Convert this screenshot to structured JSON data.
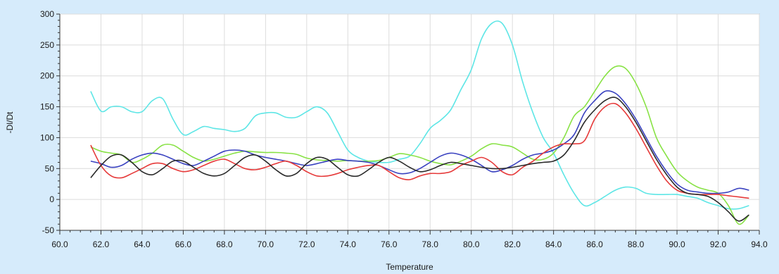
{
  "chart_data": {
    "type": "line",
    "title": "",
    "xlabel": "Temperature",
    "ylabel": "-Dl/Dt",
    "xlim": [
      60,
      94
    ],
    "ylim": [
      -50,
      300
    ],
    "x_ticks": [
      "60.0",
      "62.0",
      "64.0",
      "66.0",
      "68.0",
      "70.0",
      "72.0",
      "74.0",
      "76.0",
      "78.0",
      "80.0",
      "82.0",
      "84.0",
      "86.0",
      "88.0",
      "90.0",
      "92.0",
      "94.0"
    ],
    "y_ticks": [
      "300",
      "250",
      "200",
      "150",
      "100",
      "50",
      "0",
      "-50"
    ],
    "grid": true,
    "legend": "none",
    "series": [
      {
        "color": "#5ee6e6",
        "x": [
          61.5,
          62.0,
          62.5,
          63.0,
          63.5,
          64.0,
          64.5,
          65.0,
          65.5,
          66.0,
          66.5,
          67.0,
          67.5,
          68.0,
          68.5,
          69.0,
          69.5,
          70.0,
          70.5,
          71.0,
          71.5,
          72.0,
          72.5,
          73.0,
          73.5,
          74.0,
          74.5,
          75.0,
          75.5,
          76.0,
          76.5,
          77.0,
          77.5,
          78.0,
          78.5,
          79.0,
          79.5,
          80.0,
          80.5,
          81.0,
          81.5,
          82.0,
          82.5,
          83.0,
          83.5,
          84.0,
          84.5,
          85.0,
          85.5,
          86.0,
          86.5,
          87.0,
          87.5,
          88.0,
          88.5,
          89.0,
          89.5,
          90.0,
          90.5,
          91.0,
          91.5,
          92.0,
          92.5,
          93.0,
          93.5
        ],
        "y": [
          175,
          143,
          150,
          150,
          142,
          142,
          160,
          163,
          130,
          105,
          110,
          118,
          115,
          113,
          110,
          115,
          135,
          140,
          140,
          133,
          133,
          142,
          150,
          140,
          110,
          80,
          68,
          62,
          60,
          60,
          65,
          70,
          90,
          115,
          128,
          145,
          178,
          210,
          260,
          285,
          285,
          250,
          190,
          140,
          100,
          75,
          40,
          10,
          -10,
          -5,
          5,
          15,
          20,
          18,
          10,
          8,
          8,
          8,
          5,
          2,
          -5,
          -10,
          -15,
          -15,
          -10
        ]
      },
      {
        "color": "#88e245",
        "x": [
          61.5,
          62.0,
          62.5,
          63.0,
          63.5,
          64.0,
          64.5,
          65.0,
          65.5,
          66.0,
          66.5,
          67.0,
          67.5,
          68.0,
          68.5,
          69.0,
          69.5,
          70.0,
          70.5,
          71.0,
          71.5,
          72.0,
          72.5,
          73.0,
          73.5,
          74.0,
          74.5,
          75.0,
          75.5,
          76.0,
          76.5,
          77.0,
          77.5,
          78.0,
          78.5,
          79.0,
          79.5,
          80.0,
          80.5,
          81.0,
          81.5,
          82.0,
          82.5,
          83.0,
          83.5,
          84.0,
          84.5,
          85.0,
          85.5,
          86.0,
          86.5,
          87.0,
          87.5,
          88.0,
          88.5,
          89.0,
          89.5,
          90.0,
          90.5,
          91.0,
          91.5,
          92.0,
          92.5,
          93.0,
          93.5
        ],
        "y": [
          85,
          78,
          75,
          72,
          60,
          65,
          75,
          88,
          88,
          78,
          68,
          62,
          65,
          70,
          75,
          78,
          77,
          76,
          76,
          75,
          73,
          67,
          64,
          63,
          62,
          63,
          62,
          62,
          63,
          68,
          74,
          72,
          68,
          62,
          58,
          56,
          62,
          70,
          82,
          90,
          88,
          85,
          75,
          65,
          65,
          75,
          100,
          135,
          150,
          175,
          200,
          215,
          212,
          188,
          150,
          100,
          70,
          45,
          30,
          20,
          15,
          10,
          -10,
          -40,
          -25
        ]
      },
      {
        "color": "#3a42c0",
        "x": [
          61.5,
          62.0,
          62.5,
          63.0,
          63.5,
          64.0,
          64.5,
          65.0,
          65.5,
          66.0,
          66.5,
          67.0,
          67.5,
          68.0,
          68.5,
          69.0,
          69.5,
          70.0,
          70.5,
          71.0,
          71.5,
          72.0,
          72.5,
          73.0,
          73.5,
          74.0,
          74.5,
          75.0,
          75.5,
          76.0,
          76.5,
          77.0,
          77.5,
          78.0,
          78.5,
          79.0,
          79.5,
          80.0,
          80.5,
          81.0,
          81.5,
          82.0,
          82.5,
          83.0,
          83.5,
          84.0,
          84.5,
          85.0,
          85.5,
          86.0,
          86.5,
          87.0,
          87.5,
          88.0,
          88.5,
          89.0,
          89.5,
          90.0,
          90.5,
          91.0,
          91.5,
          92.0,
          92.5,
          93.0,
          93.5
        ],
        "y": [
          62,
          58,
          52,
          55,
          65,
          72,
          75,
          72,
          65,
          58,
          55,
          62,
          70,
          78,
          80,
          78,
          72,
          68,
          65,
          62,
          58,
          55,
          58,
          62,
          65,
          63,
          62,
          60,
          55,
          48,
          42,
          43,
          50,
          60,
          70,
          75,
          72,
          65,
          55,
          45,
          48,
          55,
          65,
          72,
          75,
          80,
          90,
          105,
          140,
          160,
          175,
          172,
          155,
          130,
          100,
          70,
          45,
          25,
          15,
          12,
          10,
          10,
          12,
          18,
          15
        ]
      },
      {
        "color": "#e63a3a",
        "x": [
          61.5,
          62.0,
          62.5,
          63.0,
          63.5,
          64.0,
          64.5,
          65.0,
          65.5,
          66.0,
          66.5,
          67.0,
          67.5,
          68.0,
          68.5,
          69.0,
          69.5,
          70.0,
          70.5,
          71.0,
          71.5,
          72.0,
          72.5,
          73.0,
          73.5,
          74.0,
          74.5,
          75.0,
          75.5,
          76.0,
          76.5,
          77.0,
          77.5,
          78.0,
          78.5,
          79.0,
          79.5,
          80.0,
          80.5,
          81.0,
          81.5,
          82.0,
          82.5,
          83.0,
          83.5,
          84.0,
          84.5,
          85.0,
          85.5,
          86.0,
          86.5,
          87.0,
          87.5,
          88.0,
          88.5,
          89.0,
          89.5,
          90.0,
          90.5,
          91.0,
          91.5,
          92.0,
          92.5,
          93.0,
          93.5
        ],
        "y": [
          88,
          55,
          38,
          35,
          42,
          50,
          58,
          58,
          50,
          45,
          48,
          55,
          62,
          65,
          58,
          50,
          48,
          52,
          58,
          62,
          55,
          45,
          38,
          38,
          42,
          48,
          52,
          55,
          55,
          45,
          35,
          32,
          38,
          42,
          42,
          45,
          55,
          62,
          68,
          60,
          45,
          40,
          52,
          62,
          75,
          85,
          90,
          90,
          95,
          130,
          150,
          155,
          140,
          115,
          85,
          55,
          30,
          15,
          10,
          8,
          8,
          8,
          6,
          4,
          2
        ]
      },
      {
        "color": "#2a2a2a",
        "x": [
          61.5,
          62.0,
          62.5,
          63.0,
          63.5,
          64.0,
          64.5,
          65.0,
          65.5,
          66.0,
          66.5,
          67.0,
          67.5,
          68.0,
          68.5,
          69.0,
          69.5,
          70.0,
          70.5,
          71.0,
          71.5,
          72.0,
          72.5,
          73.0,
          73.5,
          74.0,
          74.5,
          75.0,
          75.5,
          76.0,
          76.5,
          77.0,
          77.5,
          78.0,
          78.5,
          79.0,
          79.5,
          80.0,
          80.5,
          81.0,
          81.5,
          82.0,
          82.5,
          83.0,
          83.5,
          84.0,
          84.5,
          85.0,
          85.5,
          86.0,
          86.5,
          87.0,
          87.5,
          88.0,
          88.5,
          89.0,
          89.5,
          90.0,
          90.5,
          91.0,
          91.5,
          92.0,
          92.5,
          93.0,
          93.5
        ],
        "y": [
          35,
          55,
          70,
          72,
          60,
          45,
          40,
          50,
          62,
          62,
          52,
          42,
          38,
          42,
          55,
          68,
          72,
          62,
          48,
          38,
          42,
          58,
          68,
          65,
          52,
          40,
          38,
          48,
          60,
          68,
          62,
          52,
          45,
          48,
          55,
          60,
          58,
          55,
          52,
          50,
          50,
          52,
          55,
          58,
          60,
          62,
          72,
          95,
          125,
          145,
          160,
          165,
          150,
          125,
          95,
          65,
          40,
          20,
          10,
          8,
          5,
          -5,
          -20,
          -35,
          -25
        ]
      }
    ]
  }
}
